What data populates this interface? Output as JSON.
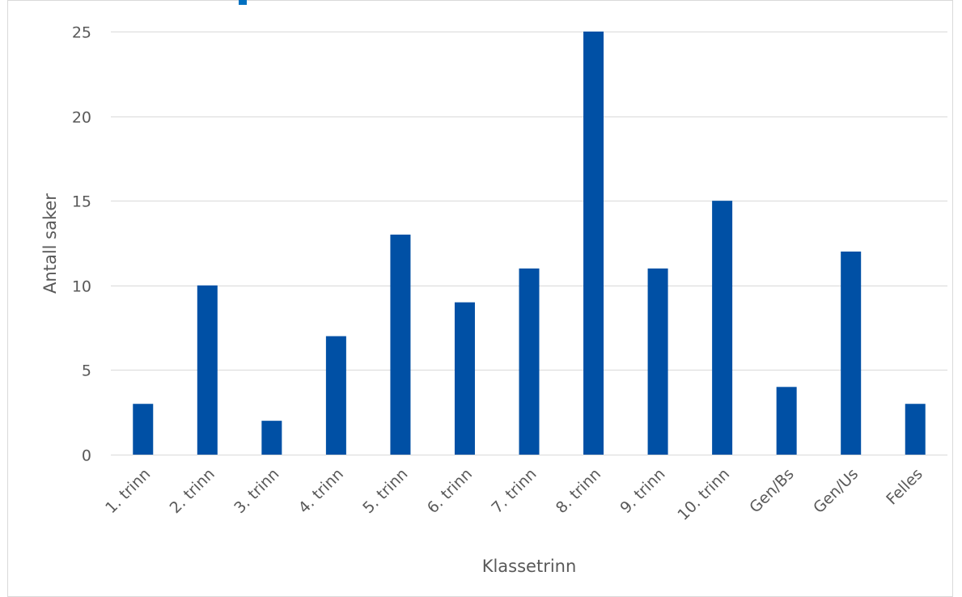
{
  "chart_data": {
    "type": "bar",
    "title": "",
    "xlabel": "Klassetrinn",
    "ylabel": "Antall saker",
    "categories": [
      "1. trinn",
      "2. trinn",
      "3. trinn",
      "4. trinn",
      "5. trinn",
      "6. trinn",
      "7. trinn",
      "8. trinn",
      "9. trinn",
      "10. trinn",
      "Gen/Bs",
      "Gen/Us",
      "Felles"
    ],
    "series": [
      {
        "values": [
          3,
          10,
          2,
          7,
          13,
          9,
          11,
          25,
          11,
          15,
          4,
          12,
          3
        ]
      }
    ],
    "ylim": [
      0,
      25
    ],
    "yticks": [
      0,
      5,
      10,
      15,
      20,
      25
    ],
    "grid": true,
    "legend": "none",
    "colors": {
      "bar": "#0050A5",
      "grid": "#D9D9D9",
      "frame": "#D9D9D9",
      "header_accent": "#0070C0"
    }
  }
}
